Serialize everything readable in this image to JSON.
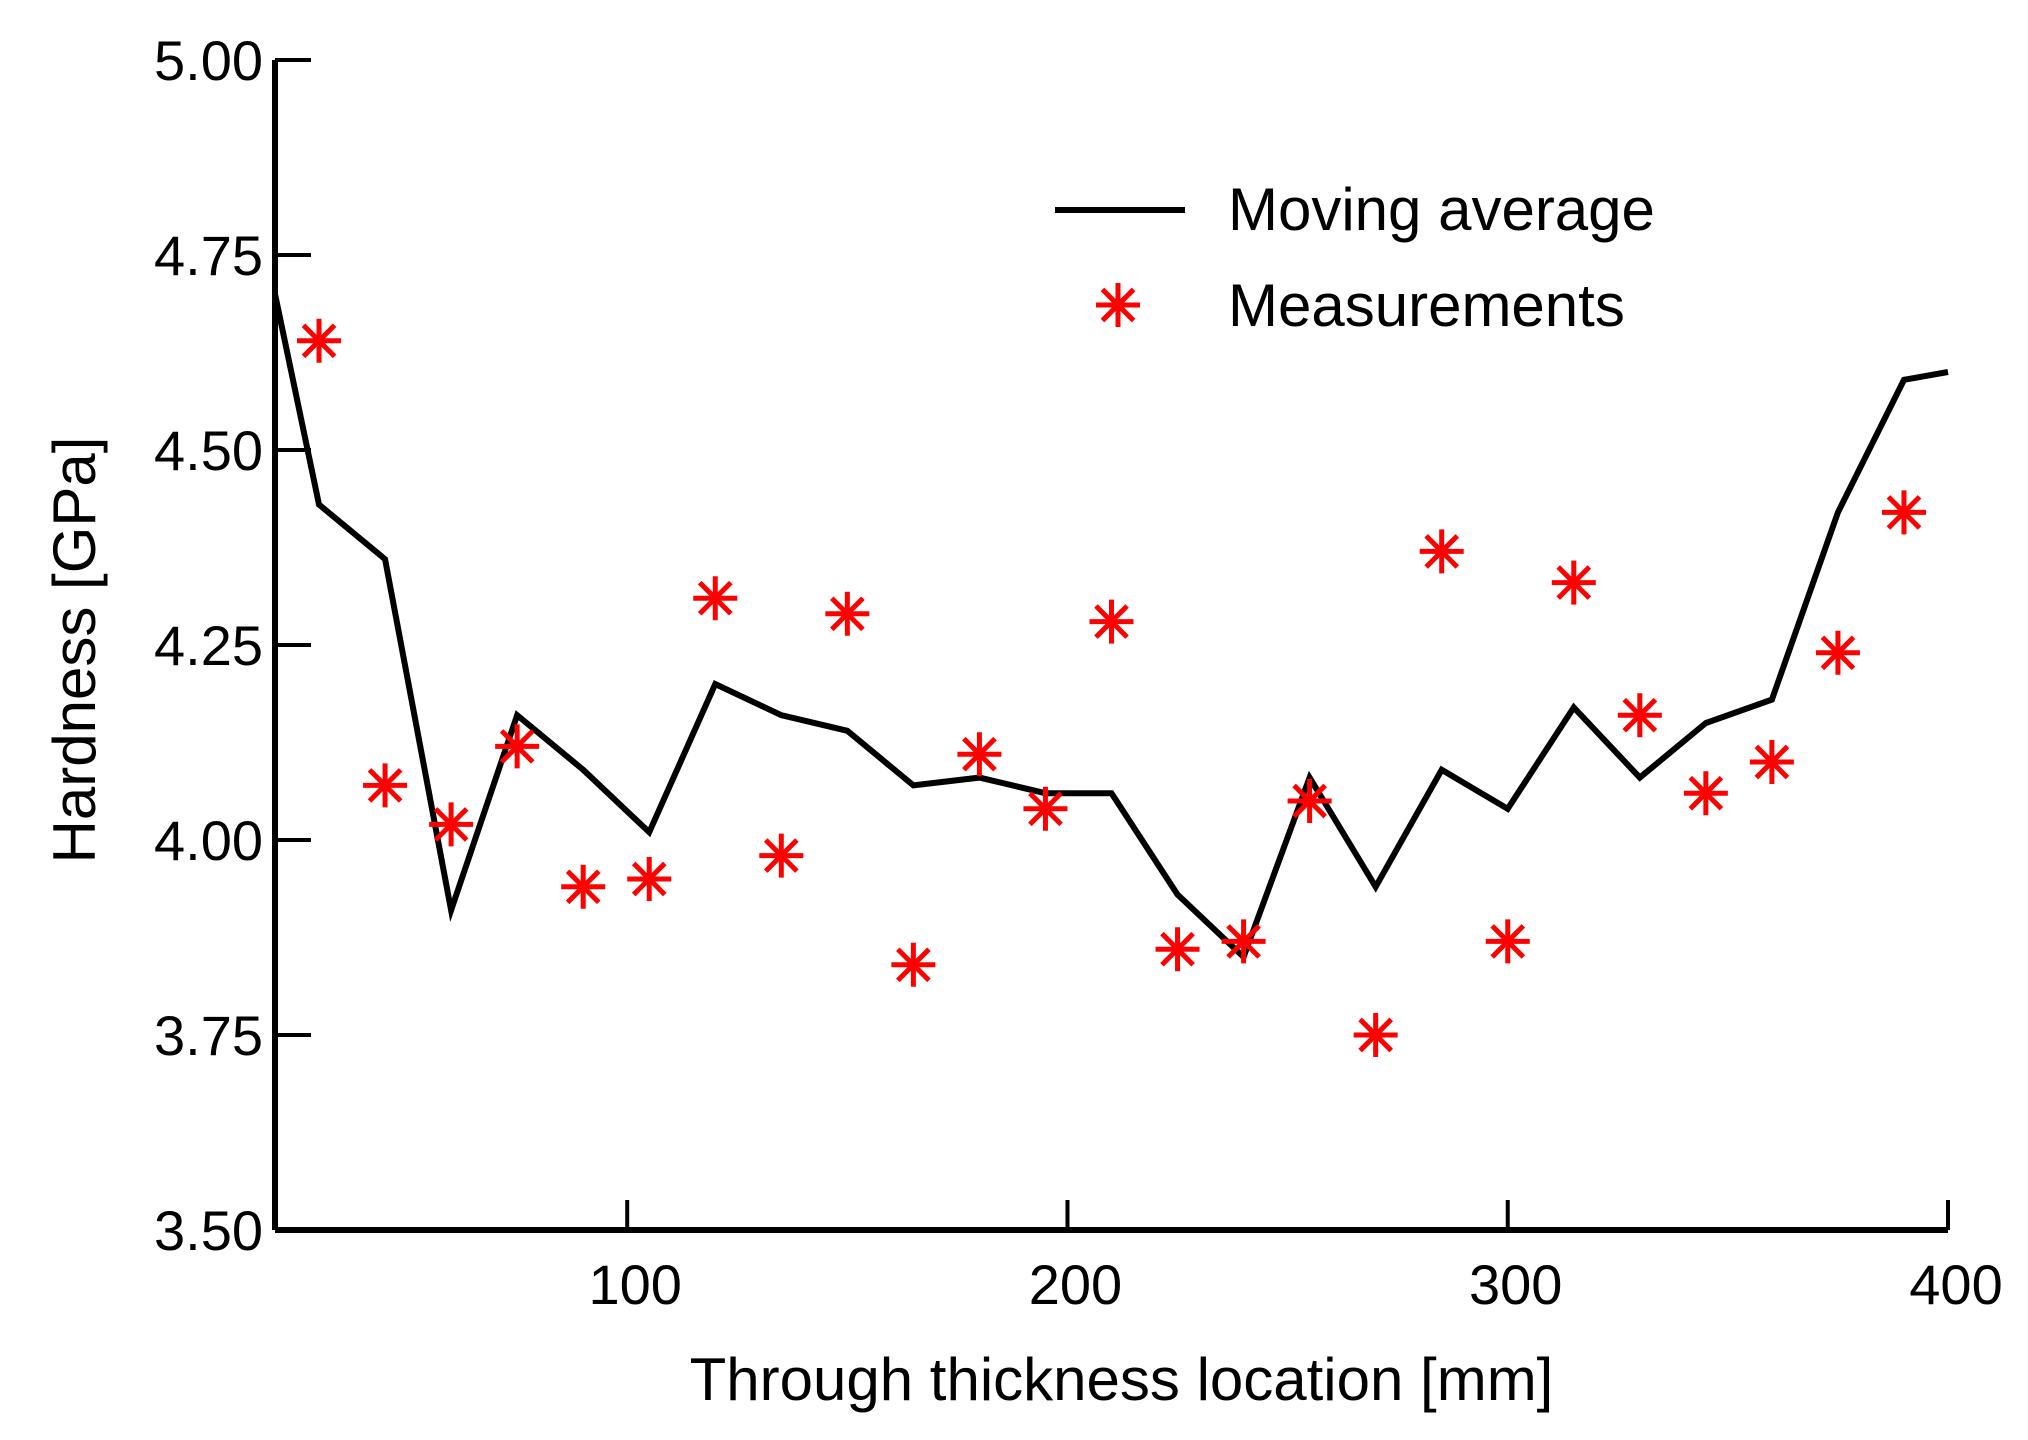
{
  "chart_data": {
    "type": "line",
    "title": "",
    "xlabel": "Through thickness location [mm]",
    "ylabel": "Hardness [GPa]",
    "xlim": [
      20,
      400
    ],
    "ylim": [
      3.5,
      5.0
    ],
    "xticks": [
      100,
      200,
      300,
      400
    ],
    "xtick_labels": [
      "100",
      "200",
      "300",
      "400"
    ],
    "yticks": [
      3.5,
      3.75,
      4.0,
      4.25,
      4.5,
      4.75,
      5.0
    ],
    "ytick_labels": [
      "3.50",
      "3.75",
      "4.00",
      "4.25",
      "4.50",
      "4.75",
      "5.00"
    ],
    "grid": false,
    "legend_position": "top-right",
    "series": [
      {
        "name": "Moving average",
        "style": "line",
        "color": "#000000",
        "x": [
          20,
          30,
          45,
          60,
          75,
          90,
          105,
          120,
          135,
          150,
          165,
          180,
          195,
          210,
          225,
          240,
          255,
          270,
          285,
          300,
          315,
          330,
          345,
          360,
          375,
          390,
          400
        ],
        "y": [
          4.7,
          4.43,
          4.36,
          3.91,
          4.16,
          4.09,
          4.01,
          4.2,
          4.16,
          4.14,
          4.07,
          4.08,
          4.06,
          4.06,
          3.93,
          3.85,
          4.08,
          3.94,
          4.09,
          4.04,
          4.17,
          4.08,
          4.15,
          4.18,
          4.42,
          4.59,
          4.6
        ]
      },
      {
        "name": "Measurements",
        "style": "marker",
        "marker": "asterisk",
        "color": "#ff0000",
        "x": [
          30,
          45,
          60,
          75,
          90,
          105,
          120,
          135,
          150,
          165,
          180,
          195,
          210,
          225,
          240,
          255,
          270,
          285,
          300,
          315,
          330,
          345,
          360,
          375,
          390
        ],
        "y": [
          4.64,
          4.07,
          4.02,
          4.12,
          3.94,
          3.95,
          4.31,
          3.98,
          4.29,
          3.84,
          4.11,
          4.04,
          4.28,
          3.86,
          3.87,
          4.05,
          3.75,
          4.37,
          3.87,
          4.33,
          4.16,
          4.06,
          4.1,
          4.24,
          4.42
        ]
      }
    ]
  }
}
